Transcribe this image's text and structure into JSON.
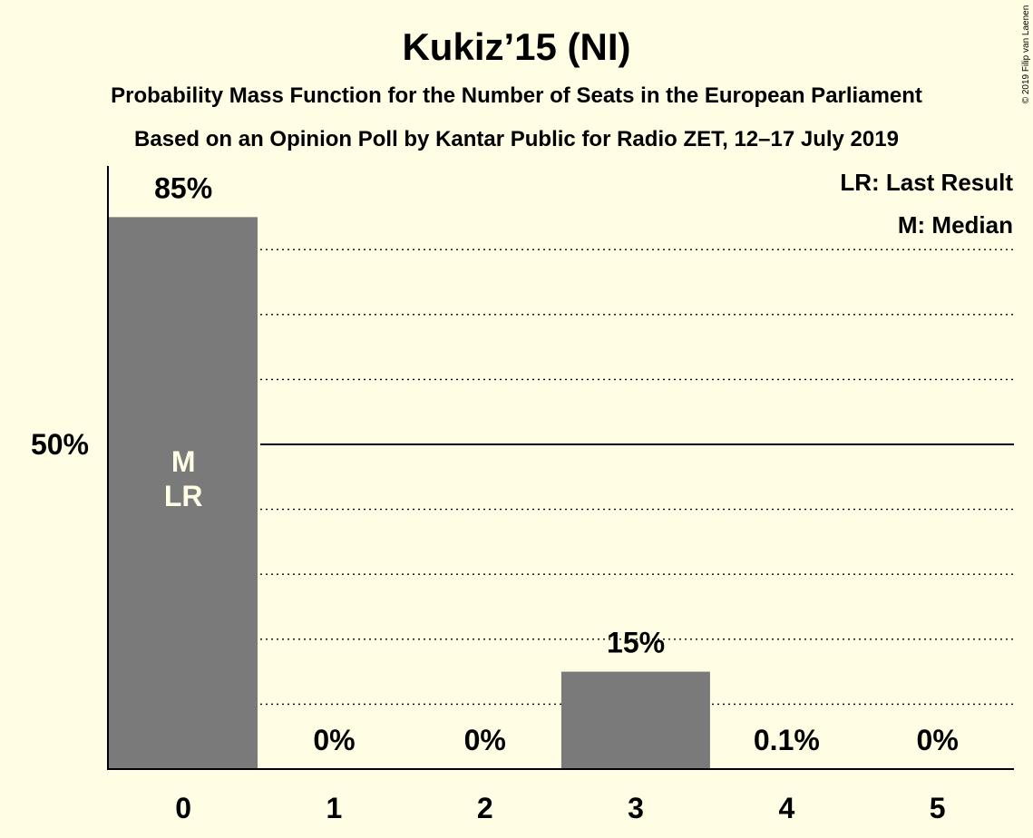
{
  "chart_data": {
    "type": "bar",
    "title": "Kukiz’15 (NI)",
    "subtitle_line1": "Probability Mass Function for the Number of Seats in the European Parliament",
    "subtitle_line2": "Based on an Opinion Poll by Kantar Public for Radio ZET, 12–17 July 2019",
    "copyright": "© 2019 Filip van Laenen",
    "categories": [
      "0",
      "1",
      "2",
      "3",
      "4",
      "5"
    ],
    "values": [
      85,
      0,
      0,
      15,
      0.1,
      0
    ],
    "value_labels": [
      "85%",
      "0%",
      "0%",
      "15%",
      "0.1%",
      "0%"
    ],
    "in_bar_markers": [
      [
        "M",
        "LR"
      ],
      [],
      [],
      [],
      [],
      []
    ],
    "ylim": [
      0,
      92
    ],
    "y_ticks": [
      {
        "value": 50,
        "label": "50%"
      }
    ],
    "gridlines_dotted": [
      10,
      20,
      30,
      40,
      60,
      70,
      80
    ],
    "legend": [
      "LR: Last Result",
      "M: Median"
    ],
    "legend_position": "top-right",
    "colors": {
      "background": "#FFFEE4",
      "bar": "#7A7A7A",
      "text": "#000000",
      "in_bar_text": "#FFFEE4"
    }
  }
}
